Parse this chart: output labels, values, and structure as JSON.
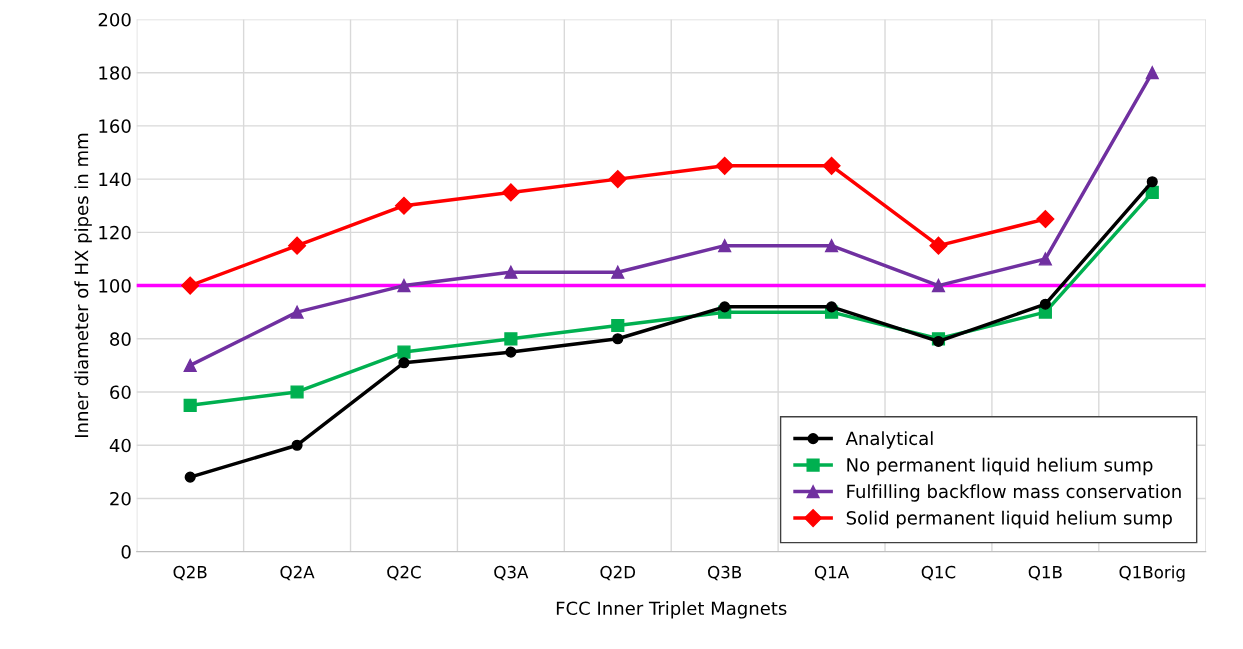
{
  "chart_data": {
    "type": "line",
    "xlabel": "FCC Inner Triplet Magnets",
    "ylabel": "Inner diameter of HX pipes in mm",
    "categories": [
      "Q2B",
      "Q2A",
      "Q2C",
      "Q3A",
      "Q2D",
      "Q3B",
      "Q1A",
      "Q1C",
      "Q1B",
      "Q1Borig"
    ],
    "series": [
      {
        "name": "Analytical",
        "color": "#000000",
        "marker": "circle",
        "values": [
          28,
          40,
          71,
          75,
          80,
          92,
          92,
          79,
          93,
          139
        ]
      },
      {
        "name": "No permanent liquid helium sump",
        "color": "#00b050",
        "marker": "square",
        "values": [
          55,
          60,
          75,
          80,
          85,
          90,
          90,
          80,
          90,
          135
        ]
      },
      {
        "name": "Fulfilling backflow mass conservation",
        "color": "#7030a0",
        "marker": "triangle",
        "values": [
          70,
          90,
          100,
          105,
          105,
          115,
          115,
          100,
          110,
          180
        ]
      },
      {
        "name": "Solid permanent liquid helium sump",
        "color": "#ff0000",
        "marker": "diamond",
        "values": [
          100,
          115,
          130,
          135,
          140,
          145,
          145,
          115,
          125,
          null
        ]
      }
    ],
    "ylim": [
      0,
      200
    ],
    "yticks": [
      0,
      20,
      40,
      60,
      80,
      100,
      120,
      140,
      160,
      180,
      200
    ],
    "ref_lines": [
      {
        "axis": "y",
        "value": 100,
        "color": "#ff00ff"
      }
    ],
    "grid": true,
    "legend": "bottom right"
  }
}
